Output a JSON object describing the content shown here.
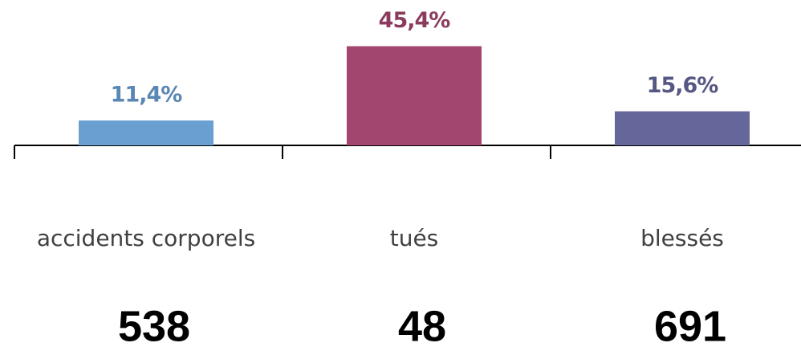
{
  "chart_data": {
    "type": "bar",
    "categories": [
      "accidents corporels",
      "tués",
      "blessés"
    ],
    "values": [
      11.4,
      45.4,
      15.6
    ],
    "value_labels": [
      "11,4%",
      "45,4%",
      "15,6%"
    ],
    "colors": [
      "#6a9fd2",
      "#a3466f",
      "#65669a"
    ],
    "counts": [
      538,
      48,
      691
    ]
  }
}
